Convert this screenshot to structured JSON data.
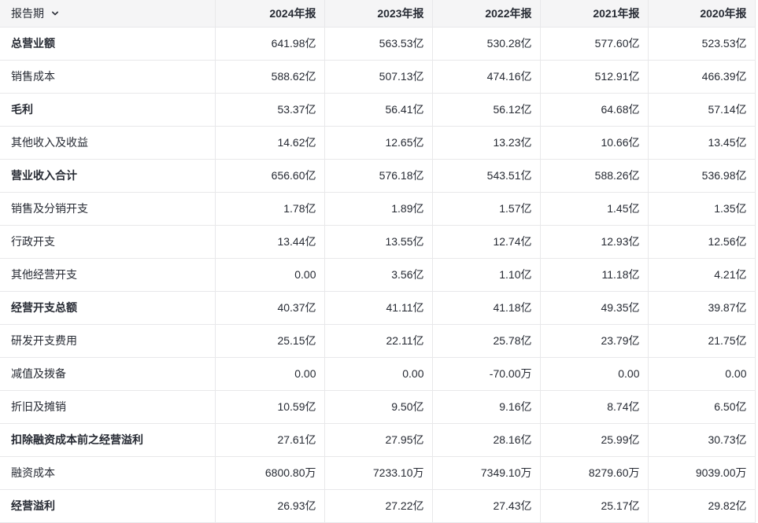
{
  "colors": {
    "text": "#262a33",
    "header_bg": "#f5f5f6",
    "border": "#e8e8ea",
    "row_bg": "#ffffff"
  },
  "table": {
    "header": {
      "report_period_label": "报告期",
      "chevron_icon": "chevron-down",
      "year_columns": [
        "2024年报",
        "2023年报",
        "2022年报",
        "2021年报",
        "2020年报"
      ]
    },
    "rows": [
      {
        "label": "总营业额",
        "bold": true,
        "values": [
          "641.98亿",
          "563.53亿",
          "530.28亿",
          "577.60亿",
          "523.53亿"
        ]
      },
      {
        "label": "销售成本",
        "bold": false,
        "values": [
          "588.62亿",
          "507.13亿",
          "474.16亿",
          "512.91亿",
          "466.39亿"
        ]
      },
      {
        "label": "毛利",
        "bold": true,
        "values": [
          "53.37亿",
          "56.41亿",
          "56.12亿",
          "64.68亿",
          "57.14亿"
        ]
      },
      {
        "label": "其他收入及收益",
        "bold": false,
        "values": [
          "14.62亿",
          "12.65亿",
          "13.23亿",
          "10.66亿",
          "13.45亿"
        ]
      },
      {
        "label": "营业收入合计",
        "bold": true,
        "values": [
          "656.60亿",
          "576.18亿",
          "543.51亿",
          "588.26亿",
          "536.98亿"
        ]
      },
      {
        "label": "销售及分销开支",
        "bold": false,
        "values": [
          "1.78亿",
          "1.89亿",
          "1.57亿",
          "1.45亿",
          "1.35亿"
        ]
      },
      {
        "label": "行政开支",
        "bold": false,
        "values": [
          "13.44亿",
          "13.55亿",
          "12.74亿",
          "12.93亿",
          "12.56亿"
        ]
      },
      {
        "label": "其他经营开支",
        "bold": false,
        "values": [
          "0.00",
          "3.56亿",
          "1.10亿",
          "11.18亿",
          "4.21亿"
        ]
      },
      {
        "label": "经营开支总额",
        "bold": true,
        "values": [
          "40.37亿",
          "41.11亿",
          "41.18亿",
          "49.35亿",
          "39.87亿"
        ]
      },
      {
        "label": "研发开支费用",
        "bold": false,
        "values": [
          "25.15亿",
          "22.11亿",
          "25.78亿",
          "23.79亿",
          "21.75亿"
        ]
      },
      {
        "label": "减值及拨备",
        "bold": false,
        "values": [
          "0.00",
          "0.00",
          "-70.00万",
          "0.00",
          "0.00"
        ]
      },
      {
        "label": "折旧及摊销",
        "bold": false,
        "values": [
          "10.59亿",
          "9.50亿",
          "9.16亿",
          "8.74亿",
          "6.50亿"
        ]
      },
      {
        "label": "扣除融资成本前之经营溢利",
        "bold": true,
        "values": [
          "27.61亿",
          "27.95亿",
          "28.16亿",
          "25.99亿",
          "30.73亿"
        ]
      },
      {
        "label": "融资成本",
        "bold": false,
        "values": [
          "6800.80万",
          "7233.10万",
          "7349.10万",
          "8279.60万",
          "9039.00万"
        ]
      },
      {
        "label": "经营溢利",
        "bold": true,
        "values": [
          "26.93亿",
          "27.22亿",
          "27.43亿",
          "25.17亿",
          "29.82亿"
        ]
      }
    ]
  }
}
